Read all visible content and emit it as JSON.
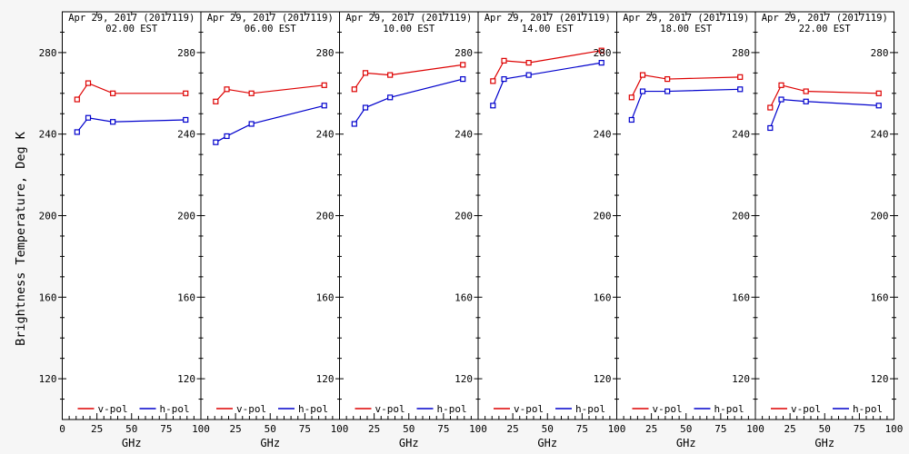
{
  "chart_data": {
    "type": "line",
    "ylabel": "Brightness Temperature, Deg K",
    "xlabel": "GHz",
    "xlim": [
      0,
      100
    ],
    "ylim": [
      100,
      300
    ],
    "xticks": [
      0,
      25,
      50,
      75,
      100
    ],
    "yticks": [
      120,
      160,
      200,
      240,
      280
    ],
    "x_minor_step": 5,
    "y_minor_step": 10,
    "grid": false,
    "legend_position": "bottom-inside-each-panel",
    "x": [
      10.7,
      18.7,
      36.5,
      89
    ],
    "legend": [
      {
        "name": "v-pol",
        "color": "#dd0000"
      },
      {
        "name": "h-pol",
        "color": "#0000cc"
      }
    ],
    "panels": [
      {
        "date_label": "Apr 29, 2017 (2017119)",
        "time_label": "02.00 EST",
        "series": [
          {
            "name": "v-pol",
            "values": [
              257,
              265,
              260,
              260
            ]
          },
          {
            "name": "h-pol",
            "values": [
              241,
              248,
              246,
              247
            ]
          }
        ]
      },
      {
        "date_label": "Apr 29, 2017 (2017119)",
        "time_label": "06.00 EST",
        "series": [
          {
            "name": "v-pol",
            "values": [
              256,
              262,
              260,
              264
            ]
          },
          {
            "name": "h-pol",
            "values": [
              236,
              239,
              245,
              254
            ]
          }
        ]
      },
      {
        "date_label": "Apr 29, 2017 (2017119)",
        "time_label": "10.00 EST",
        "series": [
          {
            "name": "v-pol",
            "values": [
              262,
              270,
              269,
              274
            ]
          },
          {
            "name": "h-pol",
            "values": [
              245,
              253,
              258,
              267
            ]
          }
        ]
      },
      {
        "date_label": "Apr 29, 2017 (2017119)",
        "time_label": "14.00 EST",
        "series": [
          {
            "name": "v-pol",
            "values": [
              266,
              276,
              275,
              281
            ]
          },
          {
            "name": "h-pol",
            "values": [
              254,
              267,
              269,
              275
            ]
          }
        ]
      },
      {
        "date_label": "Apr 29, 2017 (2017119)",
        "time_label": "18.00 EST",
        "series": [
          {
            "name": "v-pol",
            "values": [
              258,
              269,
              267,
              268
            ]
          },
          {
            "name": "h-pol",
            "values": [
              247,
              261,
              261,
              262
            ]
          }
        ]
      },
      {
        "date_label": "Apr 29, 2017 (2017119)",
        "time_label": "22.00 EST",
        "series": [
          {
            "name": "v-pol",
            "values": [
              253,
              264,
              261,
              260
            ]
          },
          {
            "name": "h-pol",
            "values": [
              243,
              257,
              256,
              254
            ]
          }
        ]
      }
    ]
  },
  "colors": {
    "axis": "#000000",
    "panel_background": "#ffffff",
    "figure_background": "#f6f6f6",
    "v_pol": "#dd0000",
    "h_pol": "#0000cc"
  }
}
